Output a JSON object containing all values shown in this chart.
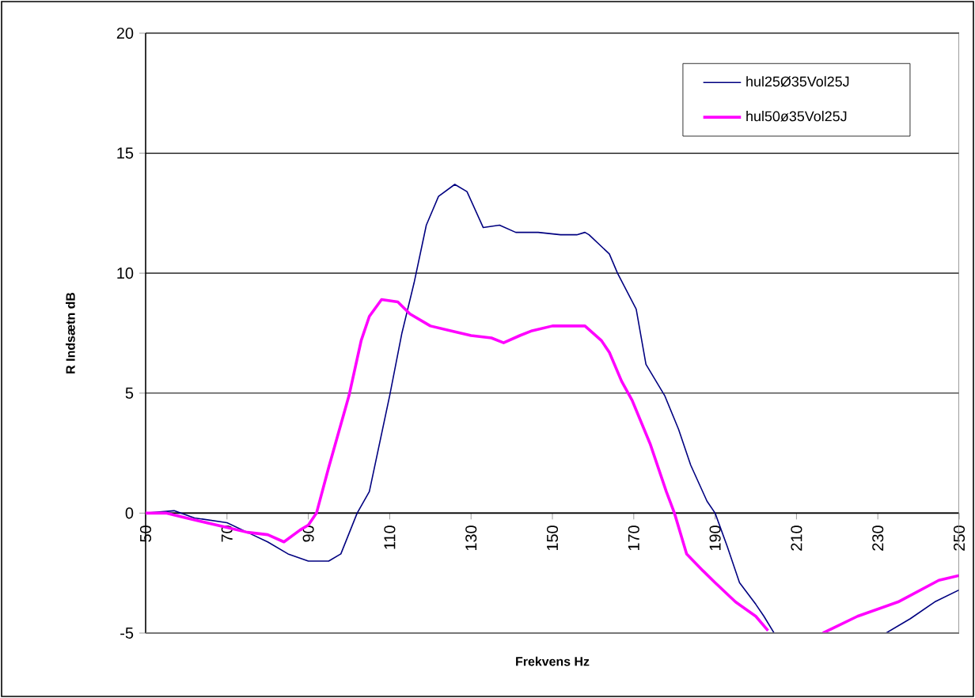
{
  "chart_data": {
    "type": "line",
    "xlabel": "Frekvens Hz",
    "ylabel": "R Indsætn dB",
    "xlim": [
      50,
      250
    ],
    "ylim": [
      -5,
      20
    ],
    "xticks": [
      50,
      70,
      90,
      110,
      130,
      150,
      170,
      190,
      210,
      230,
      250
    ],
    "yticks": [
      -5,
      0,
      5,
      10,
      15,
      20
    ],
    "grid": "y",
    "legend": "top right",
    "marker": "none",
    "line_style": "solid",
    "series": [
      {
        "name": "hul25Ø35Vol25J",
        "color": "#000080",
        "x": [
          50,
          57,
          62,
          66,
          70,
          75,
          80,
          85,
          90,
          95,
          98,
          102,
          105,
          110,
          113,
          116,
          119,
          122,
          126,
          129,
          133,
          137,
          141,
          146.5,
          152,
          156,
          158,
          159,
          164,
          166,
          170.6,
          173,
          177.6,
          181,
          184,
          188,
          190,
          193,
          196,
          200,
          202,
          204.5,
          206,
          232,
          238,
          244,
          250
        ],
        "values": [
          0,
          0.1,
          -0.2,
          -0.3,
          -0.4,
          -0.8,
          -1.2,
          -1.7,
          -2.0,
          -2.0,
          -1.7,
          0,
          0.9,
          4.9,
          7.5,
          9.6,
          12.0,
          13.2,
          13.7,
          13.4,
          11.9,
          12.0,
          11.7,
          11.7,
          11.6,
          11.6,
          11.7,
          11.6,
          10.8,
          10,
          8.5,
          6.2,
          4.9,
          3.5,
          2.0,
          0.5,
          0,
          -1.4,
          -2.9,
          -3.8,
          -4.3,
          -5,
          null,
          -5,
          -4.4,
          -3.7,
          -3.2
        ]
      },
      {
        "name": "hul50ø35Vol25J",
        "color": "#ff00ff",
        "x": [
          50,
          55,
          60,
          65,
          70,
          75,
          80,
          84,
          88,
          90,
          92,
          95,
          100,
          103,
          105,
          108,
          112,
          115,
          120,
          125,
          130,
          135,
          138,
          142,
          145,
          150,
          155,
          158,
          162,
          164,
          167,
          169.6,
          174,
          178,
          180,
          183,
          187,
          190,
          195,
          200,
          203,
          205,
          216.5,
          225,
          235,
          245,
          250
        ],
        "values": [
          0,
          0,
          -0.2,
          -0.4,
          -0.6,
          -0.8,
          -0.9,
          -1.2,
          -0.7,
          -0.5,
          0,
          1.9,
          4.9,
          7.2,
          8.2,
          8.9,
          8.8,
          8.3,
          7.8,
          7.6,
          7.4,
          7.3,
          7.1,
          7.4,
          7.6,
          7.8,
          7.8,
          7.8,
          7.2,
          6.7,
          5.5,
          4.7,
          2.9,
          0.9,
          0,
          -1.7,
          -2.4,
          -2.9,
          -3.7,
          -4.3,
          -4.9,
          null,
          -5,
          -4.3,
          -3.7,
          -2.8,
          -2.6
        ]
      }
    ]
  }
}
